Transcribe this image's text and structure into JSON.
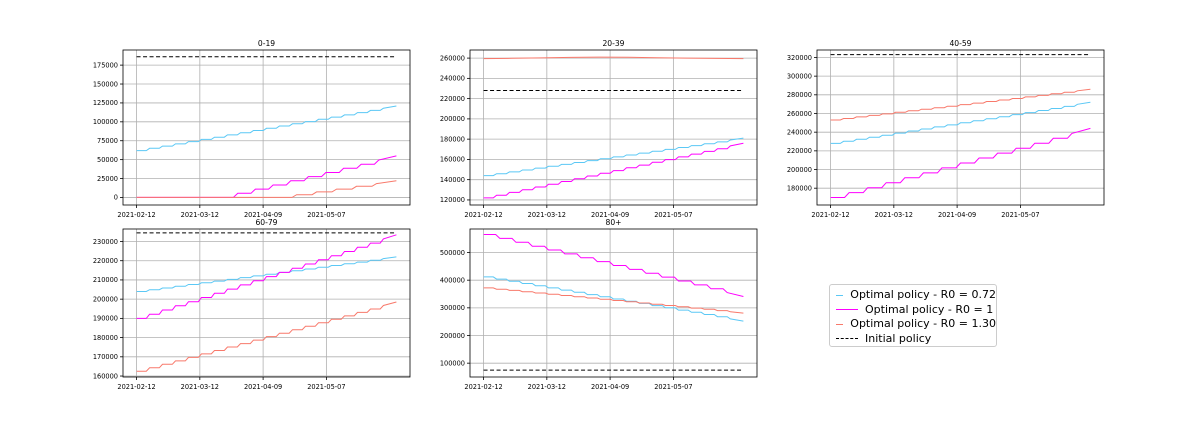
{
  "colors": {
    "r072": "#5bc8f5",
    "r1": "#ff00ff",
    "r130": "#f8796b",
    "initial": "#000000"
  },
  "legend": [
    {
      "label": "Optimal policy - R0 = 0.72",
      "series_key": "r072",
      "style": "solid"
    },
    {
      "label": "Optimal policy - R0 = 1",
      "series_key": "r1",
      "style": "solid"
    },
    {
      "label": "Optimal policy - R0 = 1.30",
      "series_key": "r130",
      "style": "solid"
    },
    {
      "label": "Initial policy",
      "series_key": "initial",
      "style": "dashed"
    }
  ],
  "chart_data": [
    {
      "type": "line",
      "title": "0-19",
      "x_ticks": [
        "2021-02-12",
        "2021-03-12",
        "2021-04-09",
        "2021-05-07"
      ],
      "x_range": [
        "2021-02-12",
        "2021-06-07"
      ],
      "ylim": [
        -10000,
        195000
      ],
      "y_ticks": [
        0,
        25000,
        50000,
        75000,
        100000,
        125000,
        150000,
        175000
      ],
      "grid": true,
      "series": [
        {
          "key": "r072",
          "name": "Optimal policy - R0 = 0.72",
          "start": 62000,
          "end": 121000,
          "steps": 20
        },
        {
          "key": "r1",
          "name": "Optimal policy - R0 = 1",
          "start": 0,
          "end": 55000,
          "steps": 10,
          "zero_until": "2021-03-21"
        },
        {
          "key": "r130",
          "name": "Optimal policy - R0 = 1.30",
          "start": 0,
          "end": 22000,
          "steps": 6,
          "zero_until": "2021-04-15"
        },
        {
          "key": "initial",
          "name": "Initial policy",
          "value": 186000
        }
      ]
    },
    {
      "type": "line",
      "title": "20-39",
      "x_ticks": [
        "2021-02-12",
        "2021-03-12",
        "2021-04-09",
        "2021-05-07"
      ],
      "x_range": [
        "2021-02-12",
        "2021-06-07"
      ],
      "ylim": [
        115000,
        268000
      ],
      "y_ticks": [
        120000,
        140000,
        160000,
        180000,
        200000,
        220000,
        240000,
        260000
      ],
      "grid": true,
      "series": [
        {
          "key": "r072",
          "name": "Optimal policy - R0 = 0.72",
          "start": 144000,
          "end": 181000,
          "steps": 20
        },
        {
          "key": "r1",
          "name": "Optimal policy - R0 = 1",
          "start": 122000,
          "end": 176000,
          "steps": 20
        },
        {
          "key": "r130",
          "name": "Optimal policy - R0 = 1.30",
          "start": 259500,
          "end": 259500,
          "steps": 1
        },
        {
          "key": "initial",
          "name": "Initial policy",
          "value": 228000
        }
      ]
    },
    {
      "type": "line",
      "title": "40-59",
      "x_ticks": [
        "2021-02-12",
        "2021-03-12",
        "2021-04-09",
        "2021-05-07"
      ],
      "x_range": [
        "2021-02-12",
        "2021-06-07"
      ],
      "ylim": [
        162000,
        328000
      ],
      "y_ticks": [
        180000,
        200000,
        220000,
        240000,
        260000,
        280000,
        300000,
        320000
      ],
      "grid": true,
      "series": [
        {
          "key": "r072",
          "name": "Optimal policy - R0 = 0.72",
          "start": 228000,
          "end": 272000,
          "steps": 20
        },
        {
          "key": "r1",
          "name": "Optimal policy - R0 = 1",
          "start": 170000,
          "end": 244000,
          "steps": 14
        },
        {
          "key": "r130",
          "name": "Optimal policy - R0 = 1.30",
          "start": 253000,
          "end": 286000,
          "steps": 20
        },
        {
          "key": "initial",
          "name": "Initial policy",
          "value": 323000
        }
      ]
    },
    {
      "type": "line",
      "title": "60-79",
      "x_ticks": [
        "2021-02-12",
        "2021-03-12",
        "2021-04-09",
        "2021-05-07"
      ],
      "x_range": [
        "2021-02-12",
        "2021-06-07"
      ],
      "ylim": [
        159500,
        236500
      ],
      "y_ticks": [
        160000,
        170000,
        180000,
        190000,
        200000,
        210000,
        220000,
        230000
      ],
      "grid": true,
      "series": [
        {
          "key": "r072",
          "name": "Optimal policy - R0 = 0.72",
          "start": 204000,
          "end": 222000,
          "steps": 20
        },
        {
          "key": "r1",
          "name": "Optimal policy - R0 = 1",
          "start": 190000,
          "end": 233500,
          "steps": 20
        },
        {
          "key": "r130",
          "name": "Optimal policy - R0 = 1.30",
          "start": 162500,
          "end": 198500,
          "steps": 20
        },
        {
          "key": "initial",
          "name": "Initial policy",
          "value": 234500
        }
      ]
    },
    {
      "type": "line",
      "title": "80+",
      "x_ticks": [
        "2021-02-12",
        "2021-03-12",
        "2021-04-09",
        "2021-05-07"
      ],
      "x_range": [
        "2021-02-12",
        "2021-06-07"
      ],
      "ylim": [
        50000,
        585000
      ],
      "y_ticks": [
        100000,
        200000,
        300000,
        400000,
        500000
      ],
      "grid": true,
      "series": [
        {
          "key": "r072",
          "name": "Optimal policy - R0 = 0.72",
          "start": 412000,
          "end": 252000,
          "steps": 20
        },
        {
          "key": "r1",
          "name": "Optimal policy - R0 = 1",
          "start": 565000,
          "end": 341000,
          "steps": 16
        },
        {
          "key": "r130",
          "name": "Optimal policy - R0 = 1.30",
          "start": 372000,
          "end": 281000,
          "steps": 20
        },
        {
          "key": "initial",
          "name": "Initial policy",
          "value": 75000
        }
      ]
    }
  ]
}
